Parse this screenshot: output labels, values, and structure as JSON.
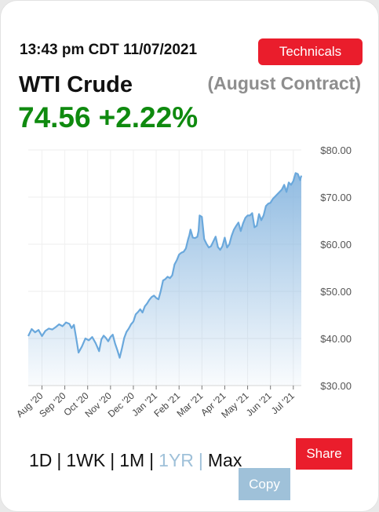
{
  "header": {
    "timestamp": "13:43 pm CDT 11/07/2021",
    "technicals_label": "Technicals"
  },
  "instrument": {
    "name": "WTI Crude",
    "contract": "(August Contract)",
    "price": "74.56",
    "change": "+2.22%"
  },
  "colors": {
    "accent_red": "#ea1d2c",
    "price_green": "#0f8a0f",
    "line_blue": "#6aa8dc",
    "muted_blue": "#9fc1d9"
  },
  "chart_data": {
    "type": "area",
    "ylim": [
      30,
      80
    ],
    "yticks": [
      "$30.00",
      "$40.00",
      "$50.00",
      "$60.00",
      "$70.00",
      "$80.00"
    ],
    "ytick_values": [
      30,
      40,
      50,
      60,
      70,
      80
    ],
    "xticks": [
      "Aug '20",
      "Sep '20",
      "Oct '20",
      "Nov '20",
      "Dec '20",
      "Jan '21",
      "Feb '21",
      "Mar '21",
      "Apr '21",
      "May '21",
      "Jun '21",
      "Jul '21"
    ],
    "xtick_positions": [
      0.6,
      1.6,
      2.6,
      3.6,
      4.6,
      5.6,
      6.6,
      7.6,
      8.6,
      9.6,
      10.6,
      11.6
    ],
    "x_range": [
      0,
      11.95
    ],
    "grid": true,
    "series": [
      {
        "x": [
          0.0,
          0.15,
          0.3,
          0.45,
          0.6,
          0.75,
          0.9,
          1.05,
          1.2,
          1.35,
          1.5,
          1.65,
          1.8,
          1.9,
          2.0,
          2.1,
          2.2,
          2.35,
          2.5,
          2.65,
          2.8,
          2.95,
          3.1,
          3.2,
          3.3,
          3.4,
          3.5,
          3.6,
          3.7,
          3.8,
          3.9,
          4.0,
          4.1,
          4.2,
          4.3,
          4.4,
          4.5,
          4.6,
          4.7,
          4.8,
          4.9,
          5.0,
          5.1,
          5.2,
          5.3,
          5.4,
          5.5,
          5.6,
          5.7,
          5.8,
          5.9,
          6.0,
          6.1,
          6.2,
          6.3,
          6.4,
          6.5,
          6.6,
          6.7,
          6.8,
          6.9,
          7.0,
          7.05,
          7.1,
          7.2,
          7.3,
          7.4,
          7.45,
          7.5,
          7.6,
          7.7,
          7.8,
          7.9,
          8.0,
          8.1,
          8.2,
          8.3,
          8.4,
          8.5,
          8.6,
          8.7,
          8.8,
          8.9,
          9.0,
          9.1,
          9.2,
          9.3,
          9.4,
          9.5,
          9.6,
          9.7,
          9.8,
          9.9,
          10.0,
          10.1,
          10.2,
          10.3,
          10.4,
          10.5,
          10.6,
          10.7,
          10.8,
          10.9,
          11.0,
          11.1,
          11.2,
          11.3,
          11.4,
          11.5,
          11.6,
          11.7,
          11.8,
          11.9,
          11.95
        ],
        "values": [
          40.5,
          42.0,
          41.3,
          41.8,
          40.5,
          41.6,
          42.1,
          41.9,
          42.4,
          43.0,
          42.6,
          43.4,
          43.1,
          42.2,
          42.9,
          40.0,
          37.0,
          38.3,
          40.0,
          39.6,
          40.3,
          39.0,
          37.3,
          39.8,
          40.6,
          40.1,
          39.4,
          40.3,
          40.8,
          38.9,
          37.5,
          35.9,
          37.9,
          40.1,
          41.4,
          42.1,
          43.0,
          43.6,
          45.1,
          45.6,
          46.2,
          45.5,
          46.8,
          47.4,
          48.2,
          48.8,
          49.1,
          48.6,
          48.3,
          50.1,
          52.3,
          52.6,
          53.1,
          52.8,
          53.4,
          55.7,
          56.6,
          57.8,
          58.2,
          58.4,
          59.1,
          61.1,
          61.9,
          63.1,
          61.4,
          61.3,
          61.6,
          62.8,
          66.1,
          65.8,
          61.1,
          60.1,
          59.3,
          59.6,
          60.6,
          61.6,
          59.4,
          58.8,
          59.6,
          61.4,
          59.3,
          60.0,
          61.8,
          63.1,
          63.9,
          64.6,
          62.8,
          64.4,
          65.6,
          66.1,
          66.1,
          66.6,
          63.6,
          63.9,
          66.4,
          65.1,
          66.1,
          68.1,
          68.6,
          68.8,
          69.6,
          70.1,
          70.6,
          71.1,
          71.6,
          72.6,
          71.1,
          73.1,
          72.6,
          73.4,
          75.1,
          74.9,
          73.6,
          74.56
        ]
      }
    ]
  },
  "timeframes": [
    {
      "label": "1D",
      "active": false
    },
    {
      "label": "1WK",
      "active": false
    },
    {
      "label": "1M",
      "active": false
    },
    {
      "label": "1YR",
      "active": true
    },
    {
      "label": "Max",
      "active": false
    }
  ],
  "actions": {
    "share_label": "Share",
    "copy_label": "Copy"
  }
}
